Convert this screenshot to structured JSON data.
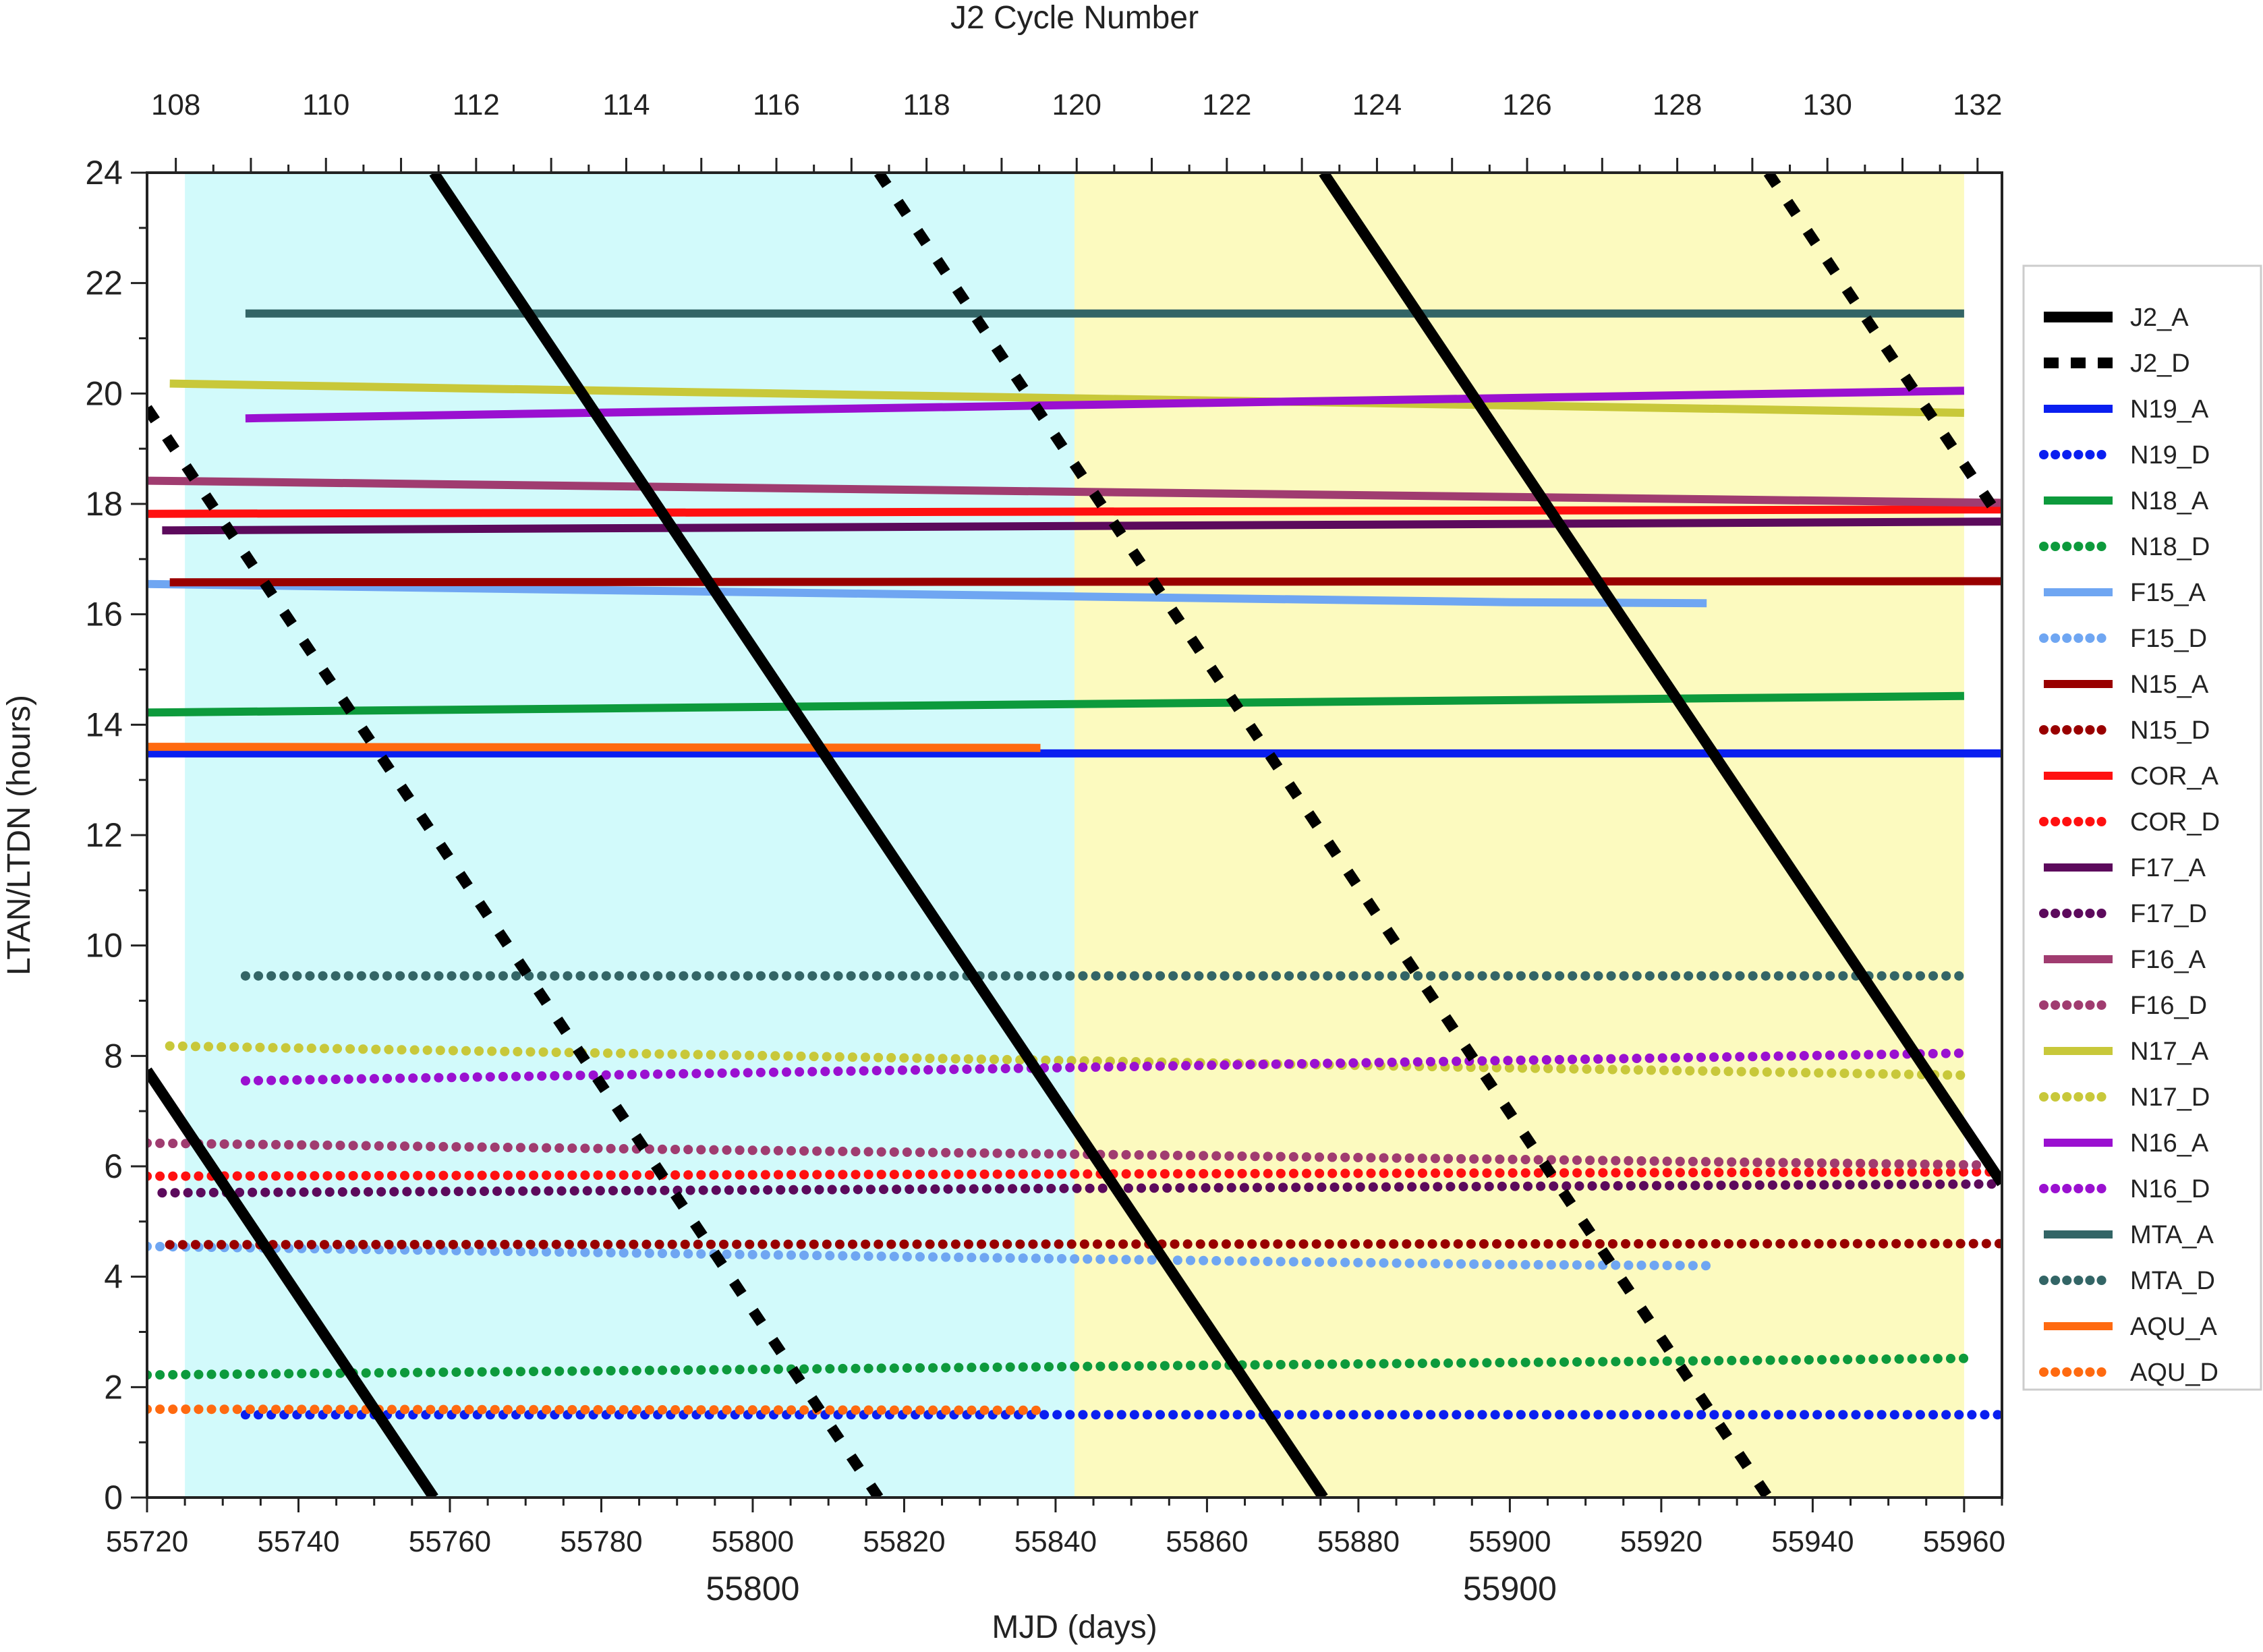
{
  "chart_data": {
    "type": "line",
    "title": "",
    "top_axis": {
      "label": "J2 Cycle Number",
      "ticks": [
        "108",
        "110",
        "112",
        "114",
        "116",
        "118",
        "120",
        "122",
        "124",
        "126",
        "128",
        "130",
        "132"
      ],
      "cycle_start_mjd": 55723.8,
      "cycle_length_days": 9.9156
    },
    "xlabel": "MJD (days)",
    "ylabel": "LTAN/LTDN (hours)",
    "xlim": [
      55720,
      55965
    ],
    "ylim": [
      0,
      24
    ],
    "x_ticks": [
      "55720",
      "55740",
      "55760",
      "55780",
      "55800",
      "55820",
      "55840",
      "55860",
      "55880",
      "55900",
      "55920",
      "55940",
      "55960"
    ],
    "x_ticks_secondary": [
      "55800",
      "55900"
    ],
    "y_ticks": [
      "0",
      "2",
      "4",
      "6",
      "8",
      "10",
      "12",
      "14",
      "16",
      "18",
      "20",
      "22",
      "24"
    ],
    "shaded_regions": [
      {
        "x0": 55725,
        "x1": 55842.5,
        "color": "#d2fafb"
      },
      {
        "x0": 55842.5,
        "x1": 55960,
        "color": "#fcfabf"
      }
    ],
    "legend_position": "right",
    "series": [
      {
        "name": "J2_A",
        "color": "#000000",
        "style": "solid",
        "sawtooth": true,
        "period": 117.5,
        "ref_x": 55728.5,
        "ref_y": 6.0
      },
      {
        "name": "J2_D",
        "color": "#000000",
        "style": "dashed",
        "sawtooth": true,
        "period": 117.5,
        "ref_x": 55728.5,
        "ref_y": 18.0
      },
      {
        "name": "N19_A",
        "color": "#0a1ff0",
        "style": "solid",
        "x": [
          55720,
          55965
        ],
        "y": [
          13.48,
          13.48
        ]
      },
      {
        "name": "N19_D",
        "color": "#0a1ff0",
        "style": "dotted",
        "x": [
          55733,
          55965
        ],
        "y": [
          1.5,
          1.5
        ]
      },
      {
        "name": "N18_A",
        "color": "#0d9a3c",
        "style": "solid",
        "x": [
          55720,
          55960
        ],
        "y": [
          14.22,
          14.52
        ]
      },
      {
        "name": "N18_D",
        "color": "#0d9a3c",
        "style": "dotted",
        "x": [
          55720,
          55960
        ],
        "y": [
          2.22,
          2.52
        ]
      },
      {
        "name": "F15_A",
        "color": "#6fa6f2",
        "style": "solid",
        "x": [
          55720,
          55800,
          55900,
          55926
        ],
        "y": [
          16.55,
          16.4,
          16.22,
          16.2
        ]
      },
      {
        "name": "F15_D",
        "color": "#6fa6f2",
        "style": "dotted",
        "x": [
          55720,
          55800,
          55900,
          55926
        ],
        "y": [
          4.55,
          4.4,
          4.22,
          4.2
        ]
      },
      {
        "name": "N15_A",
        "color": "#990000",
        "style": "solid",
        "x": [
          55723,
          55965
        ],
        "y": [
          16.58,
          16.6
        ]
      },
      {
        "name": "N15_D",
        "color": "#990000",
        "style": "dotted",
        "x": [
          55723,
          55965
        ],
        "y": [
          4.58,
          4.6
        ]
      },
      {
        "name": "COR_A",
        "color": "#ff1010",
        "style": "solid",
        "x": [
          55720,
          55965
        ],
        "y": [
          17.82,
          17.9
        ]
      },
      {
        "name": "COR_D",
        "color": "#ff1010",
        "style": "dotted",
        "x": [
          55720,
          55965
        ],
        "y": [
          5.82,
          5.9
        ]
      },
      {
        "name": "F17_A",
        "color": "#5c0a5c",
        "style": "solid",
        "x": [
          55722,
          55965
        ],
        "y": [
          17.52,
          17.68
        ]
      },
      {
        "name": "F17_D",
        "color": "#5c0a5c",
        "style": "dotted",
        "x": [
          55722,
          55965
        ],
        "y": [
          5.52,
          5.68
        ]
      },
      {
        "name": "F16_A",
        "color": "#a03c70",
        "style": "solid",
        "x": [
          55720,
          55965
        ],
        "y": [
          18.42,
          18.02
        ]
      },
      {
        "name": "F16_D",
        "color": "#a03c70",
        "style": "dotted",
        "x": [
          55720,
          55965
        ],
        "y": [
          6.42,
          6.02
        ]
      },
      {
        "name": "N17_A",
        "color": "#c8c83a",
        "style": "solid",
        "x": [
          55723,
          55960
        ],
        "y": [
          20.18,
          19.65
        ]
      },
      {
        "name": "N17_D",
        "color": "#c8c83a",
        "style": "dotted",
        "x": [
          55723,
          55960
        ],
        "y": [
          8.18,
          7.65
        ]
      },
      {
        "name": "N16_A",
        "color": "#9a10d0",
        "style": "solid",
        "x": [
          55733,
          55960
        ],
        "y": [
          19.55,
          20.05
        ]
      },
      {
        "name": "N16_D",
        "color": "#9a10d0",
        "style": "dotted",
        "x": [
          55733,
          55960
        ],
        "y": [
          7.55,
          8.05
        ]
      },
      {
        "name": "MTA_A",
        "color": "#336566",
        "style": "solid",
        "x": [
          55733,
          55960
        ],
        "y": [
          21.45,
          21.45
        ]
      },
      {
        "name": "MTA_D",
        "color": "#336566",
        "style": "dotted",
        "x": [
          55733,
          55960
        ],
        "y": [
          9.45,
          9.45
        ]
      },
      {
        "name": "AQU_A",
        "color": "#ff6a10",
        "style": "solid",
        "x": [
          55720,
          55838
        ],
        "y": [
          13.6,
          13.58
        ]
      },
      {
        "name": "AQU_D",
        "color": "#ff6a10",
        "style": "dotted",
        "x": [
          55720,
          55838
        ],
        "y": [
          1.6,
          1.58
        ]
      }
    ]
  }
}
